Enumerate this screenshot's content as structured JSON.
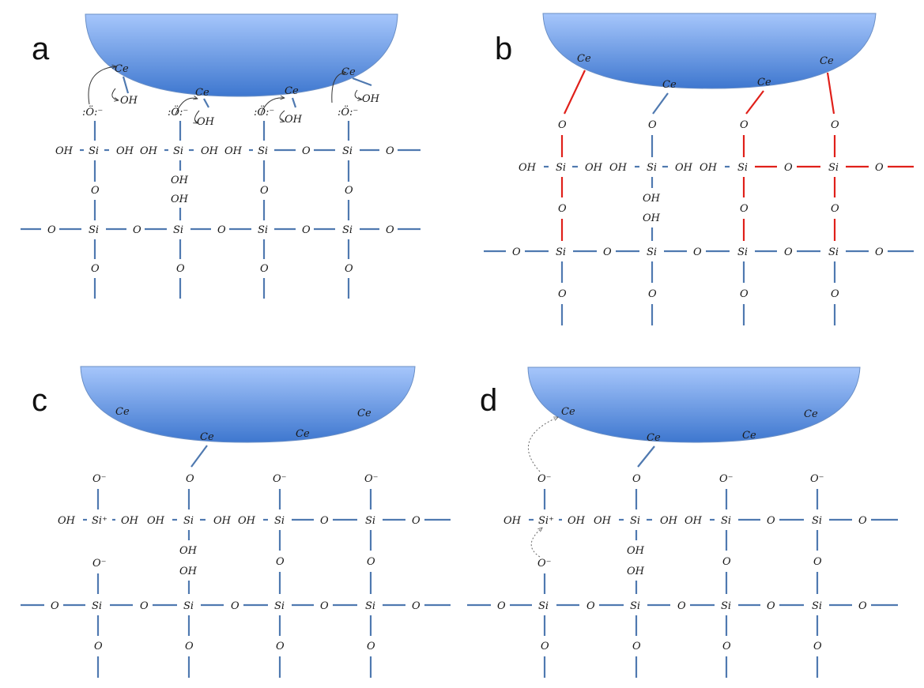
{
  "colors": {
    "bond": "#4f79b0",
    "new_bond": "#e0201a",
    "particle_light": "#a6c6fb",
    "particle_dark": "#3e77cf"
  },
  "panels": [
    {
      "letter": "a",
      "ce": "Ce",
      "oh": "OH",
      "o": "O",
      "si": "Si",
      "o_anion": ":Ö:⁻"
    },
    {
      "letter": "b",
      "ce": "Ce",
      "oh": "OH",
      "o": "O",
      "si": "Si"
    },
    {
      "letter": "c",
      "ce": "Ce",
      "oh": "OH",
      "o": "O",
      "si": "Si",
      "si_cation": "Si⁺",
      "o_minus": "O⁻"
    },
    {
      "letter": "d",
      "ce": "Ce",
      "oh": "OH",
      "o": "O",
      "si": "Si",
      "si_cation": "Si⁺",
      "o_minus": "O⁻"
    }
  ]
}
